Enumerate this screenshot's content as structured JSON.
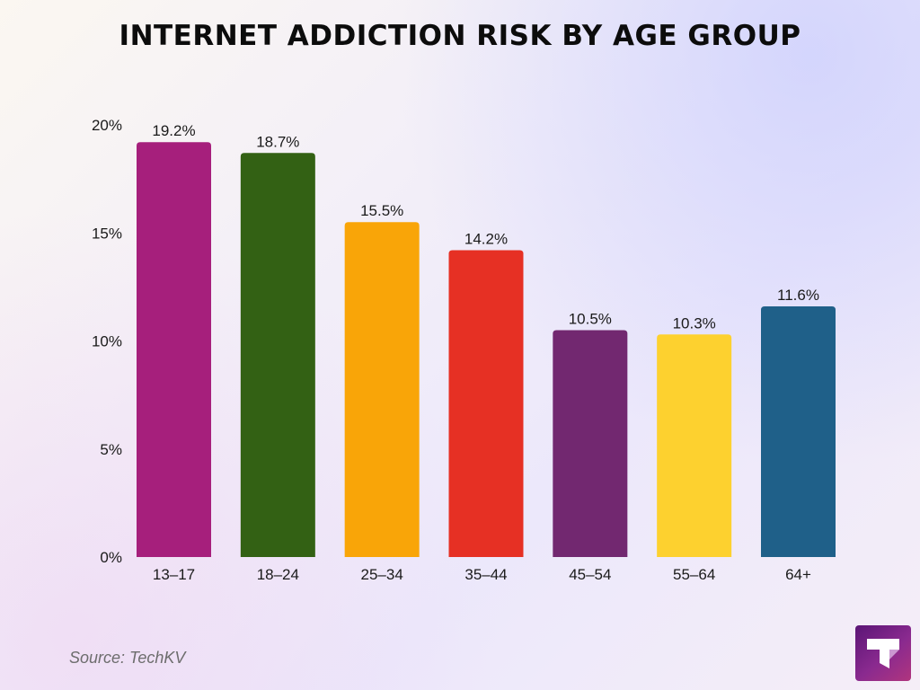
{
  "title": "INTERNET ADDICTION RISK BY AGE GROUP",
  "source": "Source: TechKV",
  "logo": {
    "icon": "techkv-logo-icon",
    "text": "T"
  },
  "chart_data": {
    "type": "bar",
    "title": "INTERNET ADDICTION RISK BY AGE GROUP",
    "xlabel": "",
    "ylabel": "",
    "ylim": [
      0,
      20
    ],
    "yticks": [
      0,
      5,
      10,
      15,
      20
    ],
    "ytick_labels": [
      "0%",
      "5%",
      "10%",
      "15%",
      "20%"
    ],
    "grid": false,
    "categories": [
      "13–17",
      "18–24",
      "25–34",
      "35–44",
      "45–54",
      "55–64",
      "64+"
    ],
    "values": [
      19.2,
      18.7,
      15.5,
      14.2,
      10.5,
      10.3,
      11.6
    ],
    "value_labels": [
      "19.2%",
      "18.7%",
      "15.5%",
      "14.2%",
      "10.5%",
      "10.3%",
      "11.6%"
    ],
    "colors": [
      "#a61f7c",
      "#336114",
      "#f9a508",
      "#e63024",
      "#722870",
      "#fdd12f",
      "#1f6089"
    ]
  }
}
